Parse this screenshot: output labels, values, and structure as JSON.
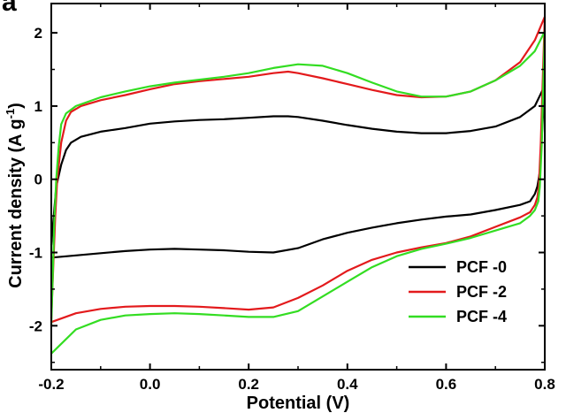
{
  "panel_label": "a",
  "chart_data": {
    "type": "line",
    "title": "",
    "xlabel": "Potential (V)",
    "ylabel": "Current density (A g",
    "ylabel_sup": "-1",
    "ylabel_close": ")",
    "xlim": [
      -0.2,
      0.8
    ],
    "ylim": [
      -2.6,
      2.4
    ],
    "x_ticks": [
      -0.2,
      0.0,
      0.2,
      0.4,
      0.6,
      0.8
    ],
    "x_tick_labels": [
      "-0.2",
      "0.0",
      "0.2",
      "0.4",
      "0.6",
      "0.8"
    ],
    "y_ticks": [
      -2,
      -1,
      0,
      1,
      2
    ],
    "y_tick_labels": [
      "-2",
      "-1",
      "0",
      "1",
      "2"
    ],
    "grid": false,
    "legend_position": "bottom-right",
    "series": [
      {
        "name": "PCF -0",
        "color": "#000000",
        "anodic": [
          [
            -0.2,
            -0.9
          ],
          [
            -0.195,
            -0.5
          ],
          [
            -0.19,
            -0.1
          ],
          [
            -0.18,
            0.2
          ],
          [
            -0.17,
            0.4
          ],
          [
            -0.16,
            0.5
          ],
          [
            -0.14,
            0.58
          ],
          [
            -0.1,
            0.65
          ],
          [
            -0.05,
            0.7
          ],
          [
            0.0,
            0.76
          ],
          [
            0.05,
            0.79
          ],
          [
            0.1,
            0.81
          ],
          [
            0.15,
            0.82
          ],
          [
            0.2,
            0.84
          ],
          [
            0.25,
            0.86
          ],
          [
            0.28,
            0.86
          ],
          [
            0.3,
            0.85
          ],
          [
            0.35,
            0.8
          ],
          [
            0.4,
            0.74
          ],
          [
            0.45,
            0.69
          ],
          [
            0.5,
            0.65
          ],
          [
            0.55,
            0.63
          ],
          [
            0.6,
            0.63
          ],
          [
            0.65,
            0.66
          ],
          [
            0.7,
            0.72
          ],
          [
            0.75,
            0.85
          ],
          [
            0.78,
            1.0
          ],
          [
            0.8,
            1.28
          ]
        ],
        "cathodic": [
          [
            0.8,
            1.28
          ],
          [
            0.795,
            0.7
          ],
          [
            0.79,
            0.1
          ],
          [
            0.785,
            -0.1
          ],
          [
            0.78,
            -0.2
          ],
          [
            0.77,
            -0.3
          ],
          [
            0.75,
            -0.35
          ],
          [
            0.7,
            -0.42
          ],
          [
            0.65,
            -0.48
          ],
          [
            0.6,
            -0.51
          ],
          [
            0.55,
            -0.55
          ],
          [
            0.5,
            -0.6
          ],
          [
            0.45,
            -0.66
          ],
          [
            0.4,
            -0.73
          ],
          [
            0.35,
            -0.82
          ],
          [
            0.3,
            -0.94
          ],
          [
            0.25,
            -1.0
          ],
          [
            0.2,
            -0.99
          ],
          [
            0.15,
            -0.97
          ],
          [
            0.1,
            -0.96
          ],
          [
            0.05,
            -0.95
          ],
          [
            0.0,
            -0.96
          ],
          [
            -0.05,
            -0.98
          ],
          [
            -0.1,
            -1.01
          ],
          [
            -0.15,
            -1.04
          ],
          [
            -0.2,
            -1.07
          ]
        ]
      },
      {
        "name": "PCF -2",
        "color": "#e31a1c",
        "anodic": [
          [
            -0.2,
            -1.9
          ],
          [
            -0.196,
            -1.2
          ],
          [
            -0.192,
            -0.5
          ],
          [
            -0.188,
            0.0
          ],
          [
            -0.18,
            0.5
          ],
          [
            -0.17,
            0.8
          ],
          [
            -0.16,
            0.92
          ],
          [
            -0.14,
            1.0
          ],
          [
            -0.1,
            1.08
          ],
          [
            -0.05,
            1.15
          ],
          [
            0.0,
            1.23
          ],
          [
            0.05,
            1.3
          ],
          [
            0.1,
            1.34
          ],
          [
            0.15,
            1.37
          ],
          [
            0.2,
            1.4
          ],
          [
            0.25,
            1.45
          ],
          [
            0.28,
            1.47
          ],
          [
            0.3,
            1.45
          ],
          [
            0.35,
            1.38
          ],
          [
            0.4,
            1.3
          ],
          [
            0.45,
            1.22
          ],
          [
            0.5,
            1.15
          ],
          [
            0.55,
            1.12
          ],
          [
            0.6,
            1.13
          ],
          [
            0.65,
            1.2
          ],
          [
            0.7,
            1.35
          ],
          [
            0.75,
            1.6
          ],
          [
            0.78,
            1.9
          ],
          [
            0.8,
            2.22
          ]
        ],
        "cathodic": [
          [
            0.8,
            2.22
          ],
          [
            0.796,
            1.4
          ],
          [
            0.792,
            0.5
          ],
          [
            0.788,
            -0.1
          ],
          [
            0.785,
            -0.25
          ],
          [
            0.78,
            -0.35
          ],
          [
            0.77,
            -0.45
          ],
          [
            0.75,
            -0.52
          ],
          [
            0.7,
            -0.65
          ],
          [
            0.65,
            -0.78
          ],
          [
            0.6,
            -0.87
          ],
          [
            0.55,
            -0.93
          ],
          [
            0.5,
            -1.0
          ],
          [
            0.45,
            -1.1
          ],
          [
            0.4,
            -1.25
          ],
          [
            0.35,
            -1.45
          ],
          [
            0.3,
            -1.62
          ],
          [
            0.25,
            -1.75
          ],
          [
            0.2,
            -1.78
          ],
          [
            0.15,
            -1.76
          ],
          [
            0.1,
            -1.74
          ],
          [
            0.05,
            -1.73
          ],
          [
            0.0,
            -1.73
          ],
          [
            -0.05,
            -1.74
          ],
          [
            -0.1,
            -1.77
          ],
          [
            -0.15,
            -1.83
          ],
          [
            -0.2,
            -1.95
          ]
        ]
      },
      {
        "name": "PCF -4",
        "color": "#33dd22",
        "anodic": [
          [
            -0.2,
            -2.0
          ],
          [
            -0.197,
            -1.3
          ],
          [
            -0.194,
            -0.6
          ],
          [
            -0.19,
            0.0
          ],
          [
            -0.185,
            0.45
          ],
          [
            -0.18,
            0.75
          ],
          [
            -0.17,
            0.9
          ],
          [
            -0.15,
            1.0
          ],
          [
            -0.1,
            1.12
          ],
          [
            -0.05,
            1.2
          ],
          [
            0.0,
            1.27
          ],
          [
            0.05,
            1.32
          ],
          [
            0.1,
            1.36
          ],
          [
            0.15,
            1.4
          ],
          [
            0.2,
            1.45
          ],
          [
            0.25,
            1.52
          ],
          [
            0.3,
            1.57
          ],
          [
            0.35,
            1.55
          ],
          [
            0.4,
            1.45
          ],
          [
            0.45,
            1.32
          ],
          [
            0.5,
            1.2
          ],
          [
            0.55,
            1.13
          ],
          [
            0.6,
            1.13
          ],
          [
            0.65,
            1.2
          ],
          [
            0.7,
            1.35
          ],
          [
            0.75,
            1.55
          ],
          [
            0.78,
            1.75
          ],
          [
            0.8,
            2.02
          ]
        ],
        "cathodic": [
          [
            0.8,
            2.02
          ],
          [
            0.797,
            1.3
          ],
          [
            0.794,
            0.5
          ],
          [
            0.79,
            -0.1
          ],
          [
            0.787,
            -0.3
          ],
          [
            0.78,
            -0.42
          ],
          [
            0.77,
            -0.5
          ],
          [
            0.75,
            -0.6
          ],
          [
            0.7,
            -0.7
          ],
          [
            0.65,
            -0.8
          ],
          [
            0.6,
            -0.88
          ],
          [
            0.55,
            -0.95
          ],
          [
            0.5,
            -1.05
          ],
          [
            0.45,
            -1.2
          ],
          [
            0.4,
            -1.4
          ],
          [
            0.35,
            -1.6
          ],
          [
            0.3,
            -1.8
          ],
          [
            0.25,
            -1.88
          ],
          [
            0.2,
            -1.88
          ],
          [
            0.15,
            -1.86
          ],
          [
            0.1,
            -1.84
          ],
          [
            0.05,
            -1.83
          ],
          [
            0.0,
            -1.84
          ],
          [
            -0.05,
            -1.86
          ],
          [
            -0.1,
            -1.92
          ],
          [
            -0.15,
            -2.05
          ],
          [
            -0.2,
            -2.38
          ]
        ]
      }
    ]
  }
}
